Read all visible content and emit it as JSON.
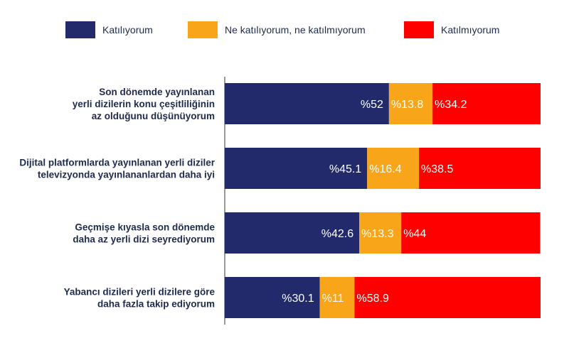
{
  "chart_data": {
    "type": "bar",
    "orientation": "horizontal",
    "stacked": true,
    "categories": [
      [
        "Son dönemde yayınlanan",
        "yerli dizilerin konu çeşitliliğinin",
        "az olduğunu düşünüyorum"
      ],
      [
        "Dijital platformlarda yayınlanan yerli diziler",
        "televizyonda yayınlananlardan daha iyi"
      ],
      [
        "Geçmişe kıyasla son dönemde",
        "daha az yerli dizi seyrediyorum"
      ],
      [
        "Yabancı dizileri yerli dizilere göre",
        "daha fazla takip ediyorum"
      ]
    ],
    "series": [
      {
        "name": "Katılıyorum",
        "color": "#232a6b",
        "values": [
          52,
          45.1,
          42.6,
          30.1
        ],
        "labels": [
          "%52",
          "%45.1",
          "%42.6",
          "%30.1"
        ]
      },
      {
        "name": "Ne katılıyorum, ne katılmıyorum",
        "color": "#f9a51a",
        "values": [
          13.8,
          16.4,
          13.3,
          11
        ],
        "labels": [
          "%13.8",
          "%16.4",
          "%13.3",
          "%11"
        ]
      },
      {
        "name": "Katılmıyorum",
        "color": "#ff0000",
        "values": [
          34.2,
          38.5,
          44,
          58.9
        ],
        "labels": [
          "%34.2",
          "%38.5",
          "%44",
          "%58.9"
        ]
      }
    ],
    "xlim": [
      0,
      100
    ],
    "legend_position": "top",
    "grid": false
  }
}
